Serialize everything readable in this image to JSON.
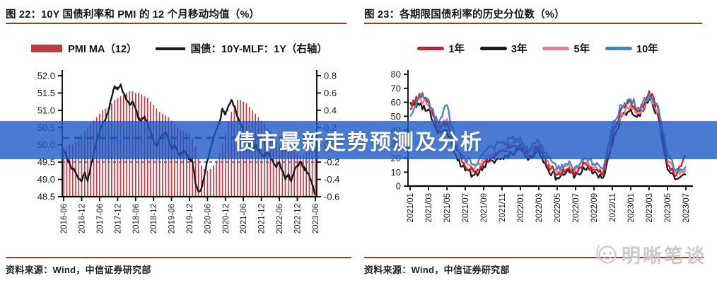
{
  "banner": {
    "text": "债市最新走势预测及分析",
    "bg_color": "#1d59c6",
    "text_color": "#ffffff"
  },
  "watermark": {
    "text": "明晰笔谈",
    "icon": "face-mascot-icon",
    "color": "#cbcbcb"
  },
  "accent_rule_color": "#9c3a36",
  "chart_data": [
    {
      "type": "bar+line",
      "title": "图 22：10Y 国债利率和 PMI 的 12 个月移动均值（%）",
      "source": "资料来源：Wind，中信证券研究部",
      "x_tick_labels": [
        "2016-06",
        "2016-12",
        "2017-06",
        "2017-12",
        "2018-06",
        "2018-12",
        "2019-06",
        "2019-12",
        "2020-06",
        "2020-12",
        "2021-06",
        "2021-12",
        "2022-06",
        "2022-12",
        "2023-06"
      ],
      "x_frequency": "monthly",
      "left_axis": {
        "min": 48.5,
        "max": 52.0,
        "step": 0.5
      },
      "right_axis": {
        "min": -0.6,
        "max": 0.8,
        "step": 0.2
      },
      "grid": false,
      "legend_position": "top",
      "series": [
        {
          "name": "PMI MA（12）",
          "type": "bar",
          "axis": "left",
          "color": "#c23b42",
          "values": [
            49.9,
            49.95,
            50.0,
            50.0,
            50.1,
            50.2,
            50.3,
            50.4,
            50.5,
            50.6,
            50.7,
            50.8,
            50.9,
            51.0,
            51.05,
            51.1,
            51.2,
            51.3,
            51.35,
            51.4,
            51.45,
            51.5,
            51.55,
            51.55,
            51.5,
            51.5,
            51.45,
            51.4,
            51.35,
            51.25,
            51.15,
            51.05,
            50.95,
            50.9,
            50.85,
            50.8,
            50.7,
            50.6,
            50.5,
            50.45,
            50.4,
            50.35,
            50.3,
            50.2,
            49.95,
            49.6,
            49.4,
            49.3,
            49.25,
            49.3,
            49.4,
            49.55,
            49.75,
            50.05,
            50.35,
            50.65,
            50.95,
            51.15,
            51.3,
            51.3,
            51.25,
            51.2,
            51.1,
            51.0,
            50.9,
            50.8,
            50.7,
            50.6,
            50.5,
            50.4,
            50.25,
            50.1,
            50.0,
            49.95,
            49.9,
            49.9,
            49.85,
            49.8,
            49.75,
            49.7,
            49.72,
            49.78,
            49.85,
            49.9,
            49.9
          ]
        },
        {
          "name": "国债：10Y-MLF：1Y（右轴）",
          "type": "line",
          "axis": "right",
          "color": "#1a1a1a",
          "values": [
            -0.05,
            -0.15,
            -0.22,
            -0.28,
            -0.32,
            -0.4,
            -0.42,
            -0.32,
            -0.42,
            -0.25,
            -0.1,
            0.05,
            0.15,
            0.25,
            0.3,
            0.4,
            0.55,
            0.68,
            0.64,
            0.7,
            0.6,
            0.52,
            0.46,
            0.5,
            0.42,
            0.3,
            0.28,
            0.33,
            0.25,
            0.15,
            0.05,
            -0.02,
            0.06,
            0.12,
            0.15,
            0.05,
            -0.05,
            0.0,
            -0.08,
            -0.14,
            -0.06,
            -0.12,
            -0.16,
            -0.2,
            -0.45,
            -0.54,
            -0.5,
            -0.35,
            -0.18,
            -0.05,
            0.08,
            0.18,
            0.25,
            0.42,
            0.35,
            0.45,
            0.52,
            0.45,
            0.32,
            0.25,
            0.15,
            0.05,
            -0.02,
            -0.06,
            0.0,
            -0.06,
            -0.1,
            -0.14,
            -0.08,
            -0.14,
            -0.2,
            -0.26,
            -0.2,
            -0.3,
            -0.4,
            -0.34,
            -0.42,
            -0.3,
            -0.24,
            -0.2,
            -0.26,
            -0.3,
            -0.36,
            -0.46,
            -0.58
          ]
        }
      ],
      "dashed_lines": [
        {
          "axis": "left",
          "value": 50.2,
          "color": "#2d4fae",
          "width": 3.2,
          "dash": "10 7"
        },
        {
          "axis": "left",
          "value": 49.5,
          "color": "#3c59a6",
          "width": 1.5,
          "dash": "4 4"
        }
      ]
    },
    {
      "type": "line",
      "title": "图 23：各期限国债利率的历史分位数（%）",
      "source": "资料来源：Wind，中信证券研究部",
      "x_tick_labels": [
        "2021/01",
        "2021/03",
        "2021/05",
        "2021/07",
        "2021/09",
        "2021/11",
        "2022/01",
        "2022/03",
        "2022/05",
        "2022/07",
        "2022/09",
        "2022/11",
        "2023/01",
        "2023/03",
        "2023/05",
        "2023/07"
      ],
      "x_frequency": "monthly",
      "y_axis": {
        "min": 0,
        "max": 80,
        "step": 10
      },
      "grid": false,
      "legend_position": "top",
      "series": [
        {
          "name": "3年",
          "color": "#1a1a1a",
          "values": [
            60,
            58,
            55,
            38,
            40,
            22,
            11,
            8,
            14,
            18,
            20,
            24,
            27,
            20,
            25,
            12,
            6,
            10,
            8,
            12,
            10,
            6,
            30,
            50,
            55,
            50,
            62,
            50,
            12,
            5,
            8
          ]
        },
        {
          "name": "5年",
          "color": "#e57f90",
          "values": [
            58,
            63,
            58,
            42,
            48,
            28,
            17,
            12,
            19,
            23,
            26,
            30,
            32,
            24,
            30,
            18,
            10,
            14,
            12,
            17,
            14,
            10,
            38,
            52,
            58,
            52,
            64,
            52,
            18,
            10,
            12
          ]
        },
        {
          "name": "1年",
          "color": "#c0222e",
          "values": [
            55,
            66,
            60,
            40,
            46,
            26,
            14,
            10,
            17,
            21,
            25,
            28,
            30,
            22,
            28,
            15,
            8,
            12,
            10,
            16,
            12,
            8,
            35,
            56,
            60,
            54,
            68,
            55,
            15,
            8,
            22
          ]
        },
        {
          "name": "10年",
          "color": "#4d82b8",
          "values": [
            50,
            64,
            62,
            45,
            58,
            30,
            20,
            15,
            24,
            28,
            31,
            34,
            35,
            26,
            32,
            20,
            12,
            16,
            14,
            20,
            16,
            12,
            42,
            58,
            62,
            55,
            66,
            57,
            22,
            12,
            14
          ]
        }
      ],
      "legend_order": [
        "1年",
        "3年",
        "5年",
        "10年"
      ]
    }
  ]
}
